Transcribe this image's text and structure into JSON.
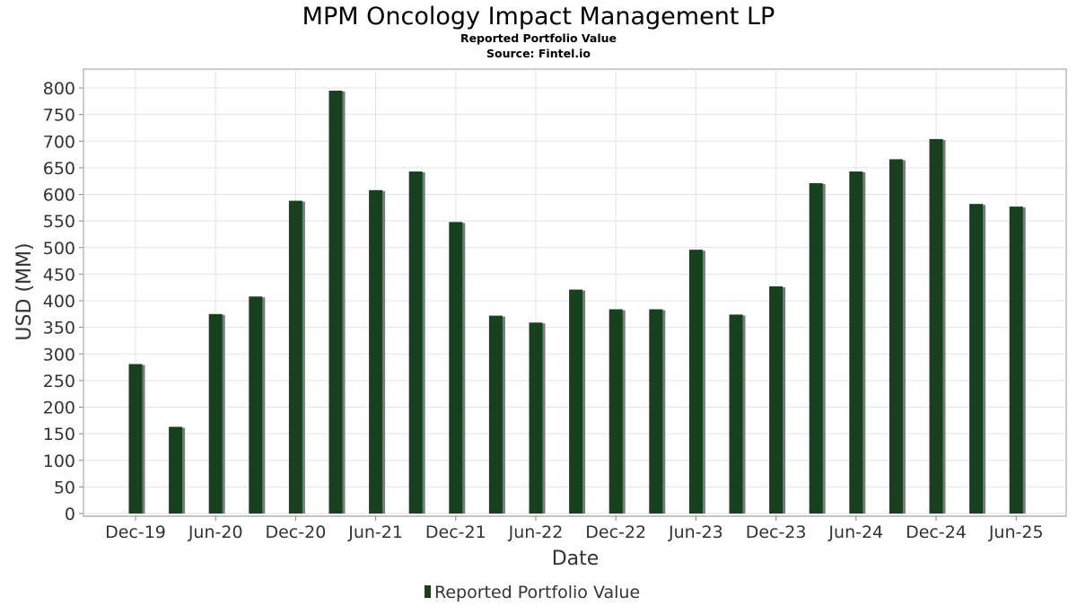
{
  "chart_data": {
    "type": "bar",
    "title": "MPM Oncology Impact Management LP",
    "subtitle": "Reported Portfolio Value",
    "source": "Source: Fintel.io",
    "xlabel": "Date",
    "ylabel": "USD (MM)",
    "ylim": [
      0,
      800
    ],
    "yticks": [
      0,
      50,
      100,
      150,
      200,
      250,
      300,
      350,
      400,
      450,
      500,
      550,
      600,
      650,
      700,
      750,
      800
    ],
    "xtick_labels": [
      "Dec-19",
      "Jun-20",
      "Dec-20",
      "Jun-21",
      "Dec-21",
      "Jun-22",
      "Dec-22",
      "Jun-23",
      "Dec-23",
      "Jun-24",
      "Dec-24",
      "Jun-25"
    ],
    "grid": true,
    "legend_position": "bottom",
    "series": [
      {
        "name": "Reported Portfolio Value",
        "color": "#17401f",
        "categories": [
          "Dec-19",
          "Mar-20",
          "Jun-20",
          "Sep-20",
          "Dec-20",
          "Mar-21",
          "Jun-21",
          "Sep-21",
          "Dec-21",
          "Mar-22",
          "Jun-22",
          "Sep-22",
          "Dec-22",
          "Mar-23",
          "Jun-23",
          "Sep-23",
          "Dec-23",
          "Mar-24",
          "Jun-24",
          "Sep-24",
          "Dec-24",
          "Mar-25",
          "Jun-25"
        ],
        "values": [
          281,
          163,
          375,
          408,
          588,
          795,
          608,
          643,
          548,
          372,
          359,
          421,
          384,
          384,
          496,
          374,
          427,
          621,
          643,
          666,
          704,
          582,
          577
        ]
      }
    ]
  }
}
